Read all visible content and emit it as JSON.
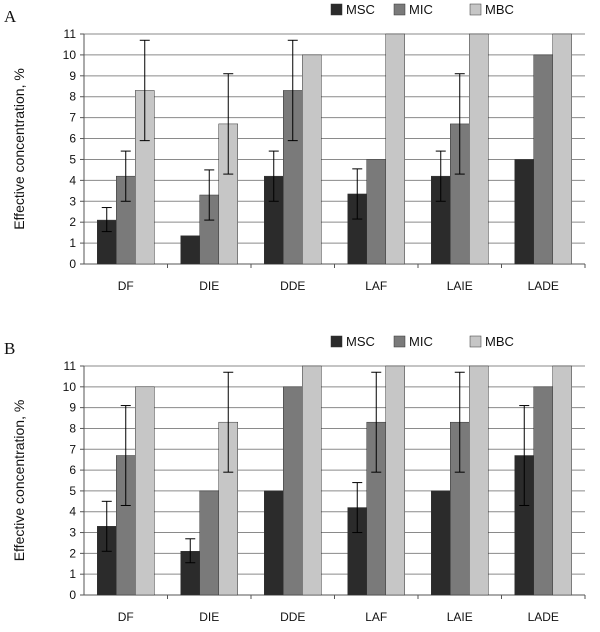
{
  "chart_data": [
    {
      "type": "bar",
      "panel_label": "A",
      "ylabel": "Effective concentration, %",
      "ylim": [
        0,
        11
      ],
      "yticks": [
        0,
        1,
        2,
        3,
        4,
        5,
        6,
        7,
        8,
        9,
        10,
        11
      ],
      "grid": true,
      "legend_position": "top-right",
      "categories": [
        "DF",
        "DIE",
        "DDE",
        "LAF",
        "LAIE",
        "LADE"
      ],
      "series": [
        {
          "name": "MSC",
          "color": "#2b2b2b",
          "values": [
            2.1,
            1.35,
            4.2,
            3.35,
            4.2,
            5.0
          ],
          "error_low": [
            1.55,
            null,
            3.0,
            2.15,
            3.0,
            null
          ],
          "error_high": [
            2.7,
            null,
            5.4,
            4.55,
            5.4,
            null
          ]
        },
        {
          "name": "MIC",
          "color": "#7a7a7a",
          "values": [
            4.2,
            3.3,
            8.3,
            5.0,
            6.7,
            10.0
          ],
          "error_low": [
            3.0,
            2.1,
            5.9,
            null,
            4.3,
            null
          ],
          "error_high": [
            5.4,
            4.5,
            10.7,
            null,
            9.1,
            null
          ]
        },
        {
          "name": "MBC",
          "color": "#c6c6c6",
          "values": [
            8.3,
            6.7,
            10.0,
            11.0,
            11.0,
            11.0
          ],
          "error_low": [
            5.9,
            4.3,
            null,
            null,
            null,
            null
          ],
          "error_high": [
            10.7,
            9.1,
            null,
            null,
            null,
            null
          ]
        }
      ]
    },
    {
      "type": "bar",
      "panel_label": "B",
      "ylabel": "Effective concentration, %",
      "ylim": [
        0,
        11
      ],
      "yticks": [
        0,
        1,
        2,
        3,
        4,
        5,
        6,
        7,
        8,
        9,
        10,
        11
      ],
      "grid": true,
      "legend_position": "top-right",
      "categories": [
        "DF",
        "DIE",
        "DDE",
        "LAF",
        "LAIE",
        "LADE"
      ],
      "series": [
        {
          "name": "MSC",
          "color": "#2b2b2b",
          "values": [
            3.3,
            2.1,
            5.0,
            4.2,
            5.0,
            6.7
          ],
          "error_low": [
            2.1,
            1.55,
            null,
            3.0,
            null,
            4.3
          ],
          "error_high": [
            4.5,
            2.7,
            null,
            5.4,
            null,
            9.1
          ]
        },
        {
          "name": "MIC",
          "color": "#7a7a7a",
          "values": [
            6.7,
            5.0,
            10.0,
            8.3,
            8.3,
            10.0
          ],
          "error_low": [
            4.3,
            null,
            null,
            5.9,
            5.9,
            null
          ],
          "error_high": [
            9.1,
            null,
            null,
            10.7,
            10.7,
            null
          ]
        },
        {
          "name": "MBC",
          "color": "#c6c6c6",
          "values": [
            10.0,
            8.3,
            11.0,
            11.0,
            11.0,
            11.0
          ],
          "error_low": [
            null,
            5.9,
            null,
            null,
            null,
            null
          ],
          "error_high": [
            null,
            10.7,
            null,
            null,
            null,
            null
          ]
        }
      ]
    }
  ]
}
